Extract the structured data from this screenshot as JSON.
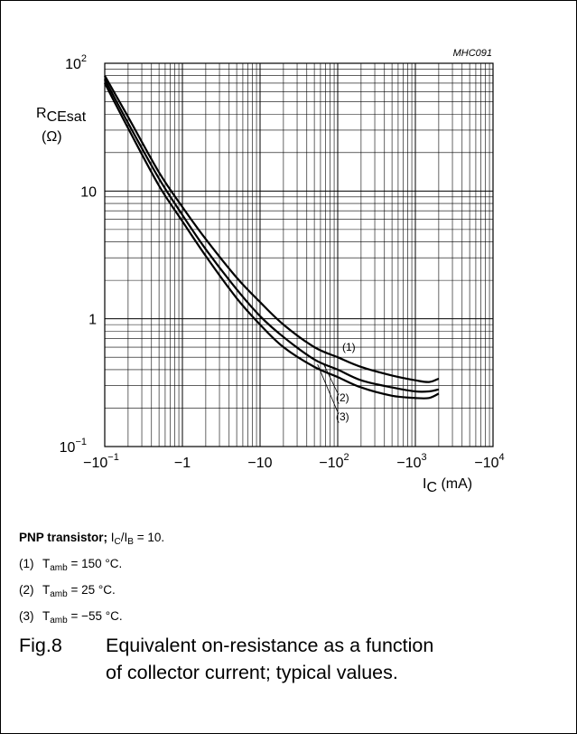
{
  "chart_data": {
    "type": "line",
    "code": "MHC091",
    "x_scale": "log",
    "y_scale": "log",
    "xlim": [
      -0.1,
      -10000
    ],
    "ylim": [
      0.1,
      100
    ],
    "x_ticks": [
      {
        "value": -0.1,
        "base": "−10",
        "exp": "−1"
      },
      {
        "value": -1,
        "base": "−1",
        "exp": ""
      },
      {
        "value": -10,
        "base": "−10",
        "exp": ""
      },
      {
        "value": -100,
        "base": "−10",
        "exp": "2"
      },
      {
        "value": -1000,
        "base": "−10",
        "exp": "3"
      },
      {
        "value": -10000,
        "base": "−10",
        "exp": "4"
      }
    ],
    "y_ticks": [
      {
        "value": 0.1,
        "base": "10",
        "exp": "−1"
      },
      {
        "value": 1,
        "base": "1",
        "exp": ""
      },
      {
        "value": 10,
        "base": "10",
        "exp": ""
      },
      {
        "value": 100,
        "base": "10",
        "exp": "2"
      }
    ],
    "ylabel": {
      "main": "R",
      "sub": "CEsat",
      "unit": "(Ω)"
    },
    "xlabel": {
      "main": "I",
      "sub": "C",
      "unit": " (mA)"
    },
    "grid": true,
    "series": [
      {
        "name": "(1)",
        "x": [
          -0.1,
          -0.2,
          -0.5,
          -1,
          -2,
          -5,
          -10,
          -20,
          -50,
          -100,
          -200,
          -500,
          -1000,
          -1500,
          -2000
        ],
        "y": [
          80,
          38,
          14,
          7.5,
          4.2,
          2.1,
          1.35,
          0.9,
          0.6,
          0.5,
          0.42,
          0.36,
          0.33,
          0.32,
          0.34
        ]
      },
      {
        "name": "(2)",
        "x": [
          -0.1,
          -0.2,
          -0.5,
          -1,
          -2,
          -5,
          -10,
          -20,
          -50,
          -100,
          -200,
          -500,
          -1000,
          -1500,
          -2000
        ],
        "y": [
          75,
          34,
          12.5,
          6.5,
          3.5,
          1.7,
          1.05,
          0.72,
          0.48,
          0.4,
          0.33,
          0.29,
          0.27,
          0.27,
          0.28
        ]
      },
      {
        "name": "(3)",
        "x": [
          -0.1,
          -0.2,
          -0.5,
          -1,
          -2,
          -5,
          -10,
          -20,
          -50,
          -100,
          -200,
          -500,
          -1000,
          -1500,
          -2000
        ],
        "y": [
          70,
          31,
          11,
          5.8,
          3.1,
          1.45,
          0.9,
          0.6,
          0.42,
          0.35,
          0.29,
          0.25,
          0.24,
          0.24,
          0.26
        ]
      }
    ]
  },
  "legend": {
    "head_bold": "PNP transistor;",
    "head_rest_1": " I",
    "head_sub_1": "C",
    "head_rest_2": "/I",
    "head_sub_2": "B",
    "head_rest_3": " = 10.",
    "items": [
      {
        "num": "(1)",
        "sym": "T",
        "sub": "amb",
        "text": " = 150 °C."
      },
      {
        "num": "(2)",
        "sym": "T",
        "sub": "amb",
        "text": " = 25 °C."
      },
      {
        "num": "(3)",
        "sym": "T",
        "sub": "amb",
        "text": " = −55 °C."
      }
    ]
  },
  "caption": {
    "fig": "Fig.8",
    "text": "Equivalent on-resistance as a function of collector current; typical values."
  }
}
